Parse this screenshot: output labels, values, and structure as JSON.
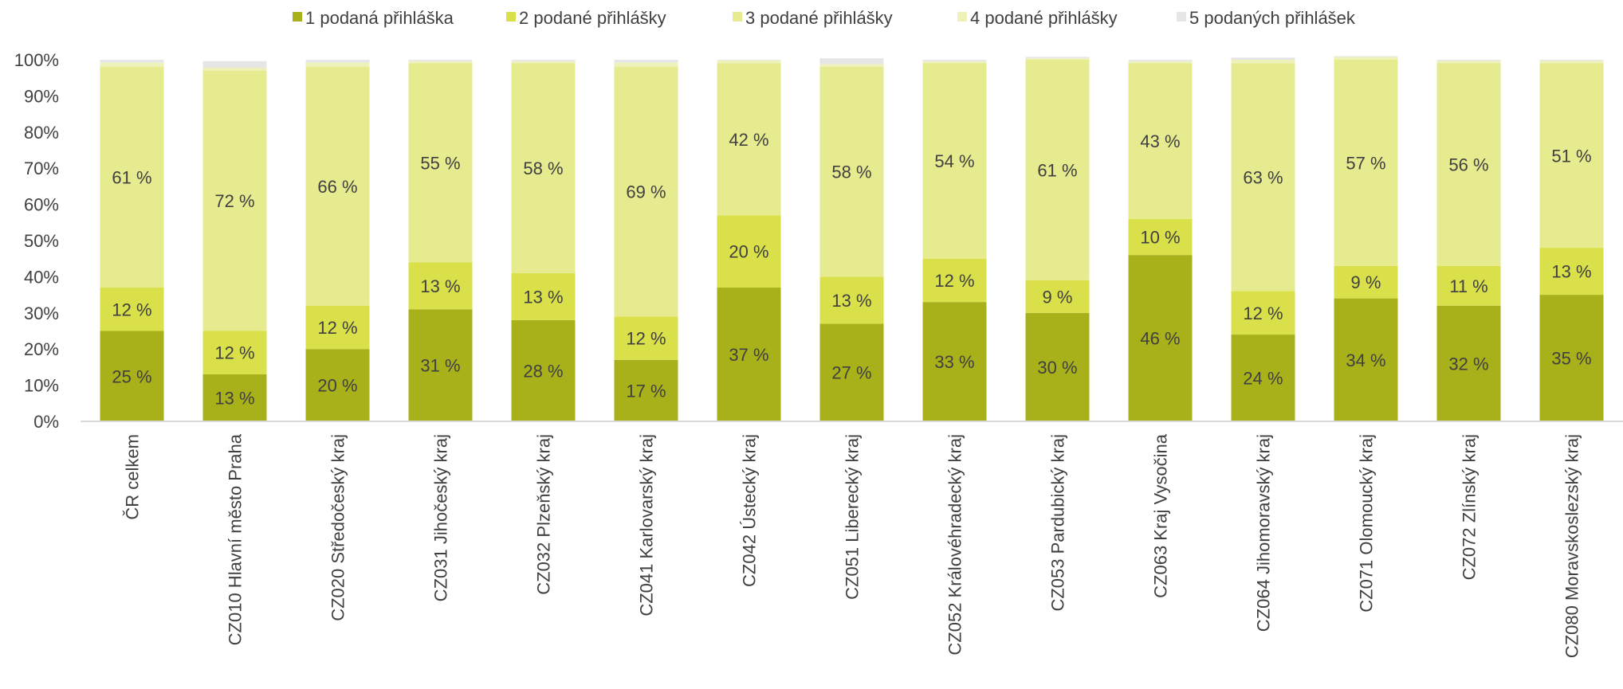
{
  "chart_data": {
    "type": "bar",
    "stacked": true,
    "title": "",
    "xlabel": "",
    "ylabel": "",
    "ylim": [
      0,
      100
    ],
    "y_ticks": [
      "0%",
      "10%",
      "20%",
      "30%",
      "40%",
      "50%",
      "60%",
      "70%",
      "80%",
      "90%",
      "100%"
    ],
    "grid": false,
    "legend_position": "top",
    "categories": [
      "ČR celkem",
      "CZ010 Hlavní město Praha",
      "CZ020 Středočeský kraj",
      "CZ031 Jihočeský kraj",
      "CZ032 Plzeňský kraj",
      "CZ041 Karlovarský kraj",
      "CZ042 Ústecký kraj",
      "CZ051 Liberecký kraj",
      "CZ052 Královéhradecký kraj",
      "CZ053 Pardubický kraj",
      "CZ063 Kraj Vysočina",
      "CZ064 Jihomoravský kraj",
      "CZ071 Olomoucký kraj",
      "CZ072 Zlínský kraj",
      "CZ080 Moravskoslezský kraj"
    ],
    "series": [
      {
        "name": "1 podaná přihláška",
        "color": "#a8b11a",
        "values": [
          25,
          13,
          20,
          31,
          28,
          17,
          37,
          27,
          33,
          30,
          46,
          24,
          34,
          32,
          35
        ],
        "labels": [
          "25 %",
          "13 %",
          "20 %",
          "31 %",
          "28 %",
          "17 %",
          "37 %",
          "27 %",
          "33 %",
          "30 %",
          "46 %",
          "24 %",
          "34 %",
          "32 %",
          "35 %"
        ]
      },
      {
        "name": "2 podané přihlášky",
        "color": "#d9e04a",
        "values": [
          12,
          12,
          12,
          13,
          13,
          12,
          20,
          13,
          12,
          9,
          10,
          12,
          9,
          11,
          13
        ],
        "labels": [
          "12 %",
          "12 %",
          "12 %",
          "13 %",
          "13 %",
          "12 %",
          "20 %",
          "13 %",
          "12 %",
          "9 %",
          "10 %",
          "12 %",
          "9 %",
          "11 %",
          "13 %"
        ]
      },
      {
        "name": "3 podané přihlášky",
        "color": "#e6eb8f",
        "values": [
          61,
          72,
          66,
          55,
          58,
          69,
          42,
          58,
          54,
          61,
          43,
          63,
          57,
          56,
          51
        ],
        "labels": [
          "61 %",
          "72 %",
          "66 %",
          "55 %",
          "58 %",
          "69 %",
          "42 %",
          "58 %",
          "54 %",
          "61 %",
          "43 %",
          "63 %",
          "57 %",
          "56 %",
          "51 %"
        ]
      },
      {
        "name": "4 podané přihlášky",
        "color": "#eef1b8",
        "values": [
          1.2,
          0.8,
          1.2,
          0.6,
          0.6,
          1.2,
          0.8,
          0.8,
          0.6,
          0.4,
          0.6,
          1.0,
          0.8,
          0.7,
          0.7
        ],
        "labels": []
      },
      {
        "name": "5 podaných přihlášek",
        "color": "#e6e6e6",
        "values": [
          0.8,
          1.8,
          0.8,
          0.4,
          0.4,
          0.8,
          0.2,
          1.6,
          0.4,
          0.4,
          0.4,
          0.6,
          0.2,
          0.3,
          0.3
        ],
        "labels": []
      }
    ]
  }
}
